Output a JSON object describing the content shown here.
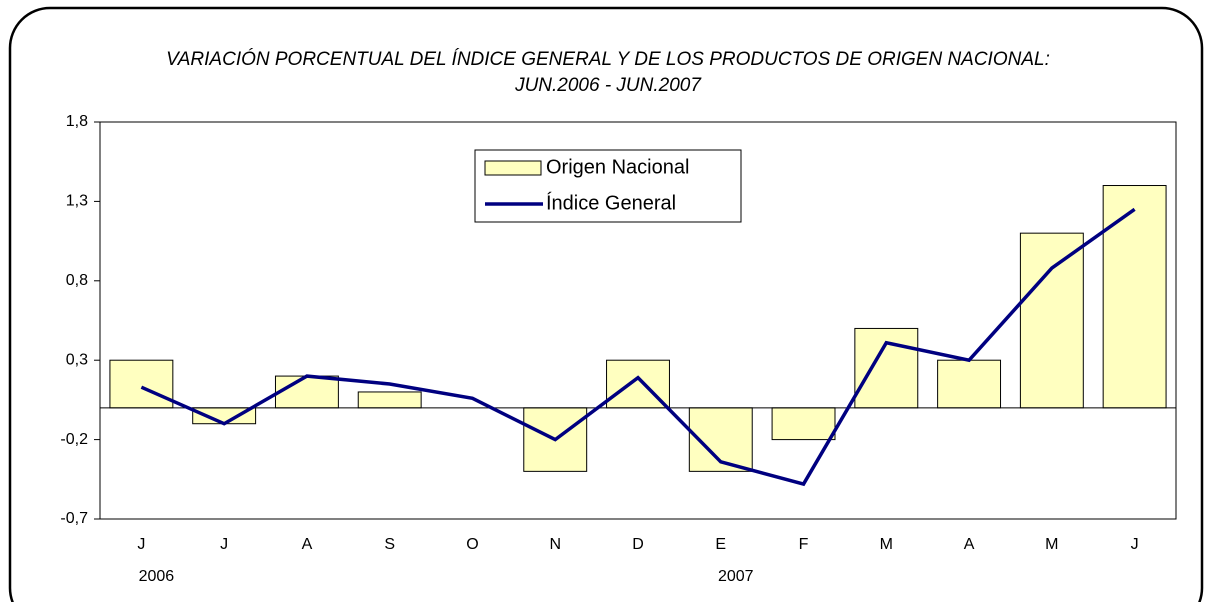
{
  "chart_data": {
    "type": "bar_line",
    "title": [
      "VARIACIÓN PORCENTUAL DEL ÍNDICE GENERAL Y DE LOS PRODUCTOS DE ORIGEN NACIONAL:",
      "JUN.2006 - JUN.2007"
    ],
    "categories": [
      "J",
      "J",
      "A",
      "S",
      "O",
      "N",
      "D",
      "E",
      "F",
      "M",
      "A",
      "M",
      "J"
    ],
    "x_group_labels": [
      "2006",
      null,
      null,
      null,
      null,
      null,
      null,
      "2007",
      null,
      null,
      null,
      null,
      null
    ],
    "series": [
      {
        "name": "Origen Nacional",
        "type": "bar",
        "color": "#ffffc0",
        "values": [
          0.3,
          -0.1,
          0.2,
          0.1,
          0,
          -0.4,
          0.3,
          -0.4,
          -0.2,
          0.5,
          0.3,
          1.1,
          1.4
        ]
      },
      {
        "name": "Índice General",
        "type": "line",
        "color": "#000080",
        "values": [
          0.13,
          -0.1,
          0.2,
          0.15,
          0.06,
          -0.2,
          0.19,
          -0.34,
          -0.48,
          0.41,
          0.3,
          0.88,
          1.25
        ]
      }
    ],
    "ylim": [
      -0.7,
      1.8
    ],
    "yticks": [
      {
        "value": -0.7,
        "label": "-0,7"
      },
      {
        "value": -0.2,
        "label": "-0,2"
      },
      {
        "value": 0.3,
        "label": "0,3"
      },
      {
        "value": 0.8,
        "label": "0,8"
      },
      {
        "value": 1.3,
        "label": "1,3"
      },
      {
        "value": 1.8,
        "label": "1,8"
      }
    ],
    "legend": "top-center"
  }
}
